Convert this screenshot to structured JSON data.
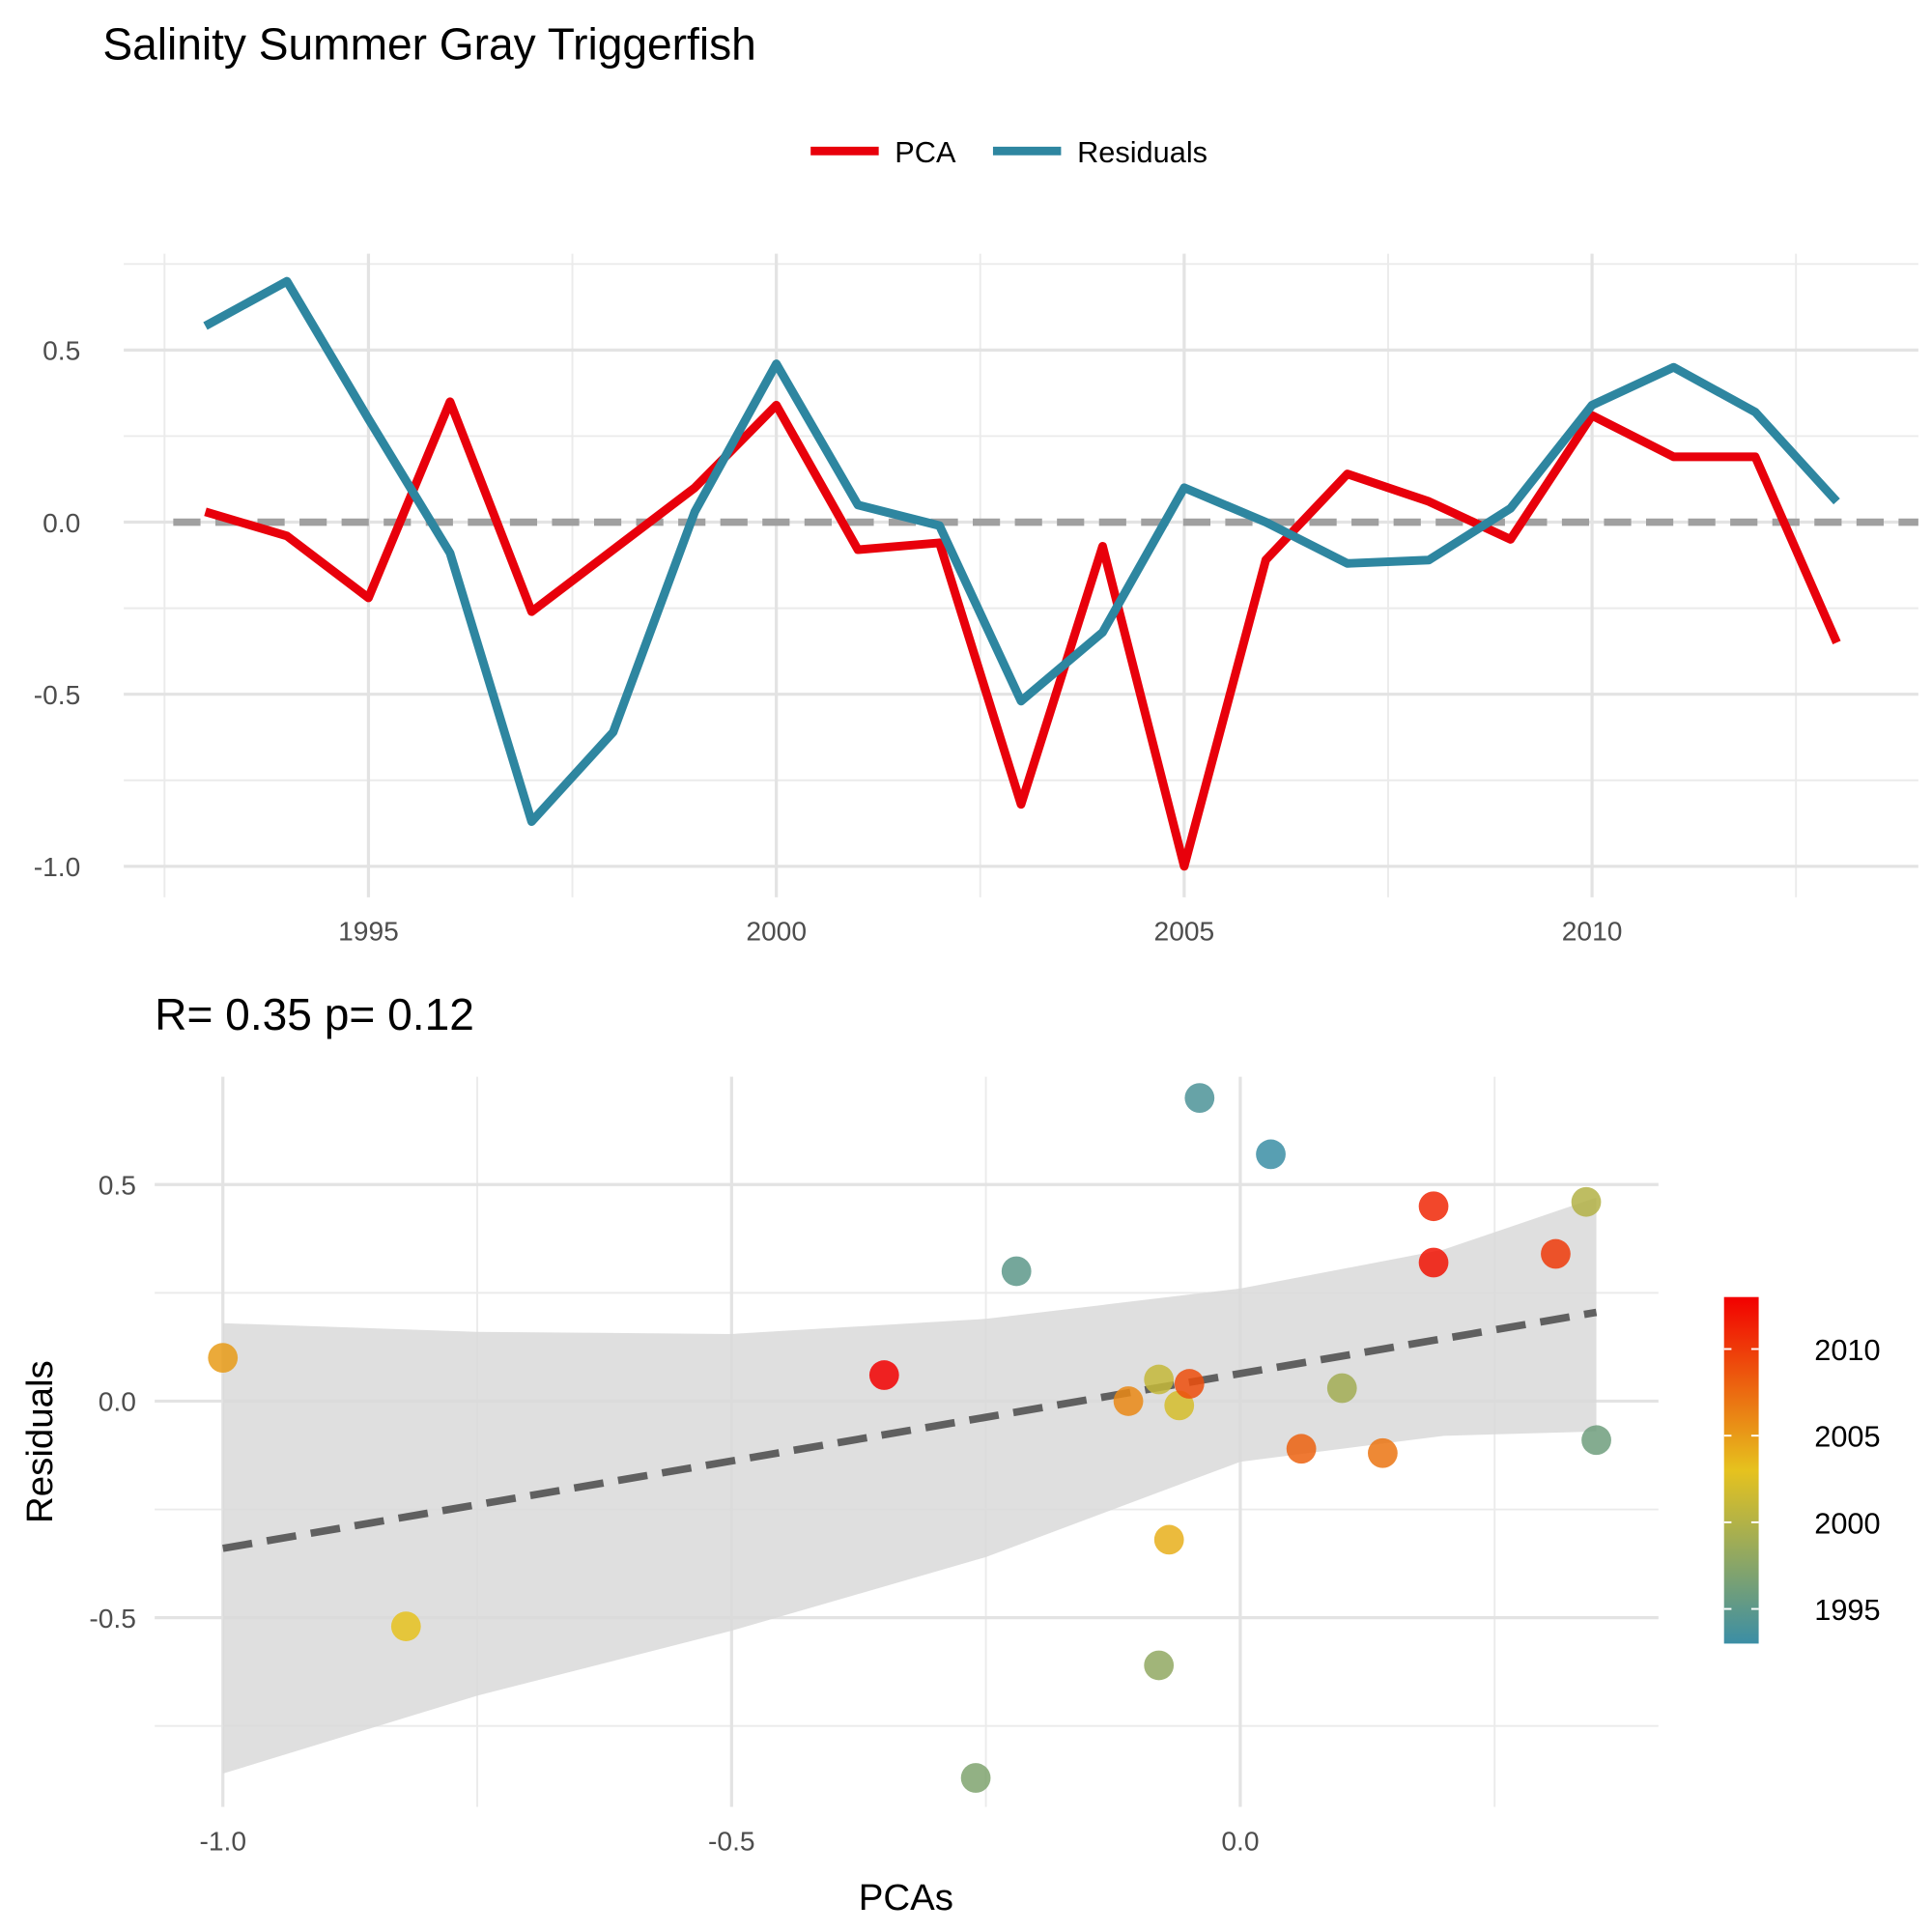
{
  "chart_data": [
    {
      "type": "line",
      "title": "Salinity Summer Gray Triggerfish",
      "x": [
        1993,
        1994,
        1995,
        1996,
        1997,
        1998,
        1999,
        2000,
        2001,
        2002,
        2003,
        2004,
        2005,
        2006,
        2007,
        2008,
        2009,
        2010,
        2011,
        2012,
        2013
      ],
      "series": [
        {
          "name": "PCA",
          "color": "#e8000b",
          "values": [
            0.03,
            -0.04,
            -0.22,
            0.35,
            -0.26,
            -0.08,
            0.1,
            0.34,
            -0.08,
            -0.06,
            -0.82,
            -0.07,
            -1.0,
            -0.11,
            0.14,
            0.06,
            -0.05,
            0.31,
            0.19,
            0.19,
            -0.35
          ]
        },
        {
          "name": "Residuals",
          "color": "#2e86a0",
          "values": [
            0.57,
            0.7,
            0.3,
            -0.09,
            -0.87,
            -0.61,
            0.03,
            0.46,
            0.05,
            -0.01,
            -0.52,
            -0.32,
            0.1,
            0.0,
            -0.12,
            -0.11,
            0.04,
            0.34,
            0.45,
            0.32,
            0.06
          ]
        }
      ],
      "xlim": [
        1992,
        2014
      ],
      "xticks": [
        1995,
        2000,
        2005,
        2010
      ],
      "ylim": [
        -1.09,
        0.78
      ],
      "yticks": [
        {
          "value": 0.5,
          "label": "0.5"
        },
        {
          "value": 0,
          "label": "0.0"
        },
        {
          "value": -0.5,
          "label": "-0.5"
        },
        {
          "value": -1,
          "label": "-1.0"
        }
      ],
      "reference_line": 0,
      "grid": true,
      "legend": "top"
    },
    {
      "type": "scatter",
      "title": "R= 0.35  p= 0.12",
      "x_label": "PCAs",
      "y_label": "Residuals",
      "x": [
        0.03,
        -0.04,
        -0.22,
        0.35,
        -0.26,
        -0.08,
        0.1,
        0.34,
        -0.08,
        -0.06,
        -0.82,
        -0.07,
        -1.0,
        -0.11,
        0.14,
        0.06,
        -0.05,
        0.31,
        0.19,
        0.19,
        -0.35
      ],
      "values": [
        0.57,
        0.7,
        0.3,
        -0.09,
        -0.87,
        -0.61,
        0.03,
        0.46,
        0.05,
        -0.01,
        -0.52,
        -0.32,
        0.1,
        0.0,
        -0.12,
        -0.11,
        0.04,
        0.34,
        0.45,
        0.32,
        0.06
      ],
      "years": [
        1993,
        1994,
        1995,
        1996,
        1997,
        1998,
        1999,
        2000,
        2001,
        2002,
        2003,
        2004,
        2005,
        2006,
        2007,
        2008,
        2009,
        2010,
        2011,
        2012,
        2013
      ],
      "colorscale": [
        "#3b8ea5",
        "#e6c21e",
        "#f20000"
      ],
      "color_lim": [
        1993,
        2013
      ],
      "color_ticks": [
        1995,
        2000,
        2005,
        2010
      ],
      "fit": {
        "x": [
          -1.0,
          0.35
        ],
        "y": [
          -0.34,
          0.205
        ],
        "color": "#606060"
      },
      "ci": {
        "x": [
          -1.0,
          -0.75,
          -0.5,
          -0.25,
          0,
          0.2,
          0.35
        ],
        "upper": [
          0.18,
          0.16,
          0.155,
          0.19,
          0.26,
          0.35,
          0.47
        ],
        "lower": [
          -0.86,
          -0.68,
          -0.53,
          -0.36,
          -0.14,
          -0.08,
          -0.07
        ],
        "color": "#d9d9d9"
      },
      "xlim": [
        -1.067,
        0.411
      ],
      "xticks": [
        {
          "value": -1,
          "label": "-1.0"
        },
        {
          "value": -0.5,
          "label": "-0.5"
        },
        {
          "value": 0,
          "label": "0.0"
        }
      ],
      "ylim": [
        -0.937,
        0.749
      ],
      "yticks": [
        {
          "value": 0.5,
          "label": "0.5"
        },
        {
          "value": 0,
          "label": "0.0"
        },
        {
          "value": -0.5,
          "label": "-0.5"
        }
      ],
      "grid": true,
      "legend": "right"
    }
  ]
}
